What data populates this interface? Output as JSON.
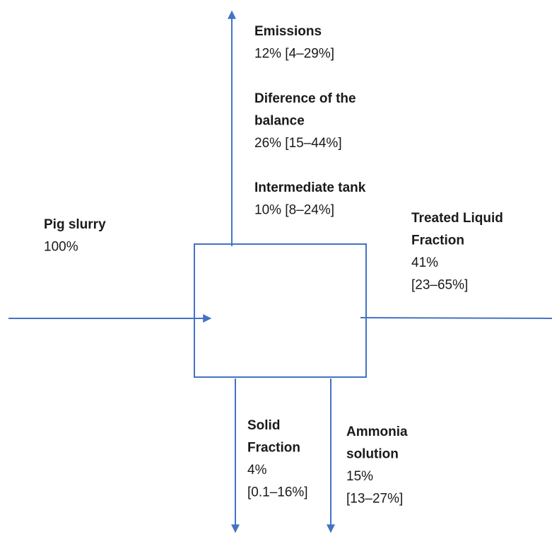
{
  "labels": [
    {
      "title": [
        "Emissions"
      ],
      "value": [
        "12% [4–29%]"
      ]
    },
    {
      "title": [
        "Diference of the",
        "balance"
      ],
      "value": [
        "26% [15–44%]"
      ]
    },
    {
      "title": [
        "Intermediate tank"
      ],
      "value": [
        "10% [8–24%]"
      ]
    },
    {
      "title": [
        "Pig slurry"
      ],
      "value": [
        "100%"
      ]
    },
    {
      "title": [
        "Treated Liquid",
        "Fraction"
      ],
      "value": [
        "41%",
        "[23–65%]"
      ]
    },
    {
      "title": [
        "Solid",
        "Fraction"
      ],
      "value": [
        "4%",
        "[0.1–16%]"
      ]
    },
    {
      "title": [
        "Ammonia",
        "solution"
      ],
      "value": [
        "15%",
        "[13–27%]"
      ]
    }
  ]
}
